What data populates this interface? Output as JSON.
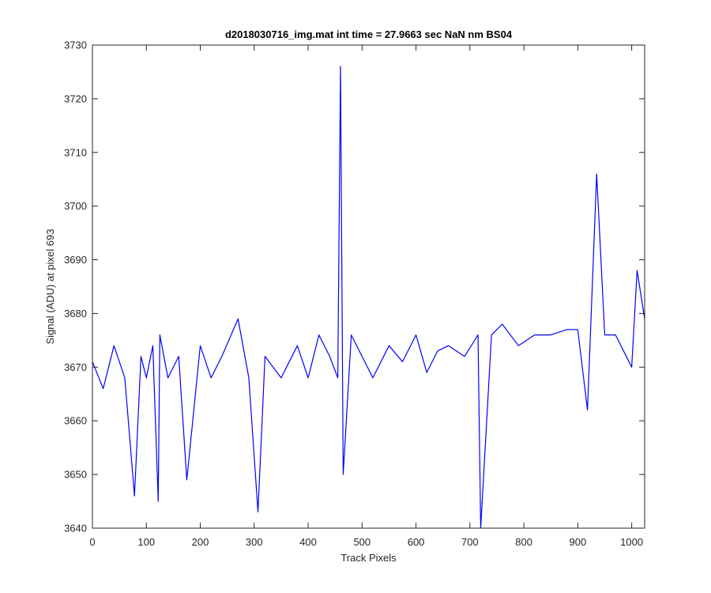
{
  "chart_data": {
    "type": "line",
    "title": "d2018030716_img.mat int time = 27.9663 sec  NaN nm BS04",
    "xlabel": "Track Pixels",
    "ylabel": "Signal (ADU) at pixel 693",
    "xlim": [
      0,
      1024
    ],
    "ylim": [
      3640,
      3730
    ],
    "xticks": [
      0,
      100,
      200,
      300,
      400,
      500,
      600,
      700,
      800,
      900,
      1000
    ],
    "yticks": [
      3640,
      3650,
      3660,
      3670,
      3680,
      3690,
      3700,
      3710,
      3720,
      3730
    ],
    "grid": false,
    "legend": "none",
    "series": [
      {
        "color": "#0000ff",
        "x": [
          0,
          20,
          40,
          60,
          78,
          90,
          100,
          112,
          122,
          125,
          140,
          160,
          175,
          200,
          220,
          240,
          270,
          290,
          307,
          320,
          350,
          380,
          400,
          420,
          440,
          455,
          460,
          465,
          480,
          500,
          520,
          550,
          575,
          600,
          620,
          640,
          660,
          690,
          715,
          720,
          740,
          760,
          790,
          820,
          850,
          880,
          900,
          918,
          935,
          950,
          970,
          1000,
          1010,
          1024
        ],
        "y": [
          3671,
          3666,
          3674,
          3668,
          3646,
          3672,
          3668,
          3674,
          3645,
          3676,
          3668,
          3672,
          3649,
          3674,
          3668,
          3672,
          3679,
          3668,
          3643,
          3672,
          3668,
          3674,
          3668,
          3676,
          3672,
          3668,
          3726,
          3650,
          3676,
          3672,
          3668,
          3674,
          3671,
          3676,
          3669,
          3673,
          3674,
          3672,
          3676,
          3640,
          3676,
          3678,
          3674,
          3676,
          3676,
          3677,
          3677,
          3662,
          3706,
          3676,
          3676,
          3670,
          3688,
          3679
        ]
      }
    ]
  }
}
